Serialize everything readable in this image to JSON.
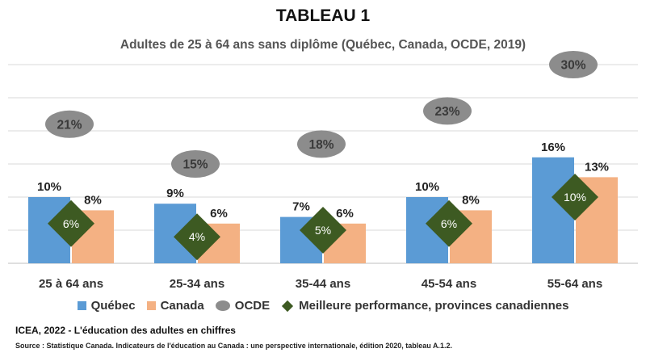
{
  "header": {
    "title": "TABLEAU 1",
    "subtitle": "Adultes de 25 à 64 ans sans diplôme (Québec, Canada, OCDE, 2019)"
  },
  "colors": {
    "quebec": "#5b9bd5",
    "canada": "#f4b183",
    "ocde": "#8c8c8c",
    "best": "#3d5a22",
    "grid": "#d9d9d9"
  },
  "chart_data": {
    "type": "bar",
    "categories": [
      "25 à 64 ans",
      "25-34 ans",
      "35-44 ans",
      "45-54 ans",
      "55-64 ans"
    ],
    "series": [
      {
        "name": "Québec",
        "type": "bar",
        "values": [
          10,
          9,
          7,
          10,
          16
        ],
        "labels": [
          "10%",
          "9%",
          "7%",
          "10%",
          "16%"
        ]
      },
      {
        "name": "Canada",
        "type": "bar",
        "values": [
          8,
          6,
          6,
          8,
          13
        ],
        "labels": [
          "8%",
          "6%",
          "6%",
          "8%",
          "13%"
        ]
      },
      {
        "name": "OCDE",
        "type": "marker-circle",
        "values": [
          21,
          15,
          18,
          23,
          30
        ],
        "labels": [
          "21%",
          "15%",
          "18%",
          "23%",
          "30%"
        ]
      },
      {
        "name": "Meilleure performance, provinces canadiennes",
        "type": "marker-diamond",
        "values": [
          6,
          4,
          5,
          6,
          10
        ],
        "labels": [
          "6%",
          "4%",
          "5%",
          "6%",
          "10%"
        ]
      }
    ],
    "ylim": [
      0,
      30
    ],
    "grid": true,
    "legend": "bottom"
  },
  "footer": {
    "credit": "ICEA, 2022 - L'éducation des adultes en chiffres",
    "source": "Source : Statistique Canada. Indicateurs de l'éducation au Canada : une perspective internationale, édition 2020, tableau A.1.2."
  }
}
